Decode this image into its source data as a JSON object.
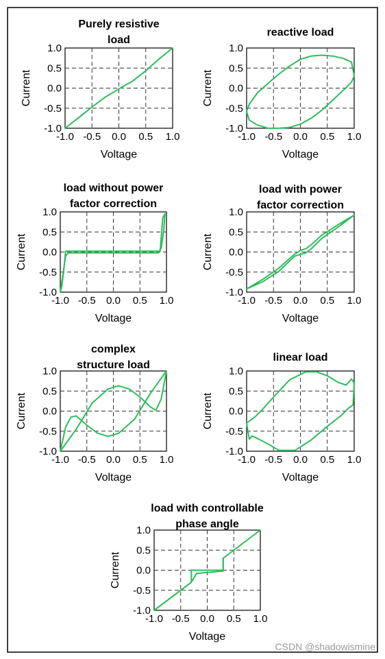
{
  "watermark": "CSDN @shadowismine",
  "styles": {
    "curve_color": "#2cbd5a"
  },
  "chart_data": [
    {
      "type": "line",
      "title": [
        "Purely resistive",
        "load"
      ],
      "xlabel": "Voltage",
      "ylabel": "Current",
      "xlim": [
        -1.0,
        1.0
      ],
      "ylim": [
        -1.0,
        1.0
      ],
      "xticks": [
        "-1.0",
        "-0.5",
        "0.0",
        "0.5",
        "1.0"
      ],
      "yticks": [
        "1.0",
        "0.5",
        "0.0",
        "-0.5",
        "-1.0"
      ],
      "grid": true,
      "series": [
        {
          "x": [
            -1.0,
            -0.75,
            -0.5,
            -0.25,
            -0.1,
            0.0,
            0.1,
            0.25,
            0.5,
            0.75,
            1.0
          ],
          "y": [
            -1.0,
            -0.74,
            -0.47,
            -0.22,
            -0.1,
            -0.02,
            0.06,
            0.17,
            0.43,
            0.73,
            1.0
          ]
        }
      ]
    },
    {
      "type": "line",
      "title": [
        "reactive load"
      ],
      "xlabel": "Voltage",
      "ylabel": "Current",
      "xlim": [
        -1.0,
        1.0
      ],
      "ylim": [
        -1.0,
        1.0
      ],
      "xticks": [
        "-1.0",
        "-0.5",
        "0.0",
        "0.5",
        "1.0"
      ],
      "yticks": [
        "1.0",
        "0.5",
        "0.0",
        "-0.5",
        "-1.0"
      ],
      "grid": true,
      "series": [
        {
          "x": [
            1.0,
            0.95,
            0.8,
            0.6,
            0.4,
            0.2,
            0.0,
            -0.2,
            -0.4,
            -0.6,
            -0.8,
            -0.95,
            -1.0,
            -0.95,
            -0.8,
            -0.6,
            -0.4,
            -0.2,
            0.0,
            0.2,
            0.4,
            0.6,
            0.8,
            0.95,
            1.0
          ],
          "y": [
            0.3,
            0.65,
            0.74,
            0.8,
            0.82,
            0.8,
            0.72,
            0.55,
            0.35,
            0.12,
            -0.12,
            -0.4,
            -0.58,
            -0.8,
            -0.92,
            -1.0,
            -1.0,
            -0.98,
            -0.9,
            -0.75,
            -0.55,
            -0.3,
            -0.05,
            0.15,
            0.3
          ]
        }
      ]
    },
    {
      "type": "line",
      "title": [
        "load without power",
        "factor correction"
      ],
      "xlabel": "Voltage",
      "ylabel": "Current",
      "xlim": [
        -1.0,
        1.0
      ],
      "ylim": [
        -1.0,
        1.0
      ],
      "xticks": [
        "-1.0",
        "-0.5",
        "0.0",
        "0.5",
        "1.0"
      ],
      "yticks": [
        "1.0",
        "0.5",
        "0.0",
        "-0.5",
        "-1.0"
      ],
      "grid": true,
      "series": [
        {
          "x": [
            -1.0,
            -0.95,
            -0.9,
            -0.85,
            -0.5,
            0.0,
            0.5,
            0.8,
            0.85,
            0.9,
            0.95,
            0.97,
            0.97,
            0.93,
            0.88,
            0.8,
            0.5,
            0.0,
            -0.5,
            -0.85,
            -0.9,
            -0.93,
            -0.97,
            -1.0
          ],
          "y": [
            -1.0,
            -0.55,
            -0.1,
            -0.02,
            -0.02,
            -0.02,
            -0.02,
            -0.02,
            -0.02,
            0.1,
            0.55,
            0.95,
            0.95,
            0.85,
            0.02,
            0.02,
            0.02,
            0.02,
            0.02,
            0.02,
            0.02,
            -0.4,
            -0.85,
            -1.0
          ]
        }
      ]
    },
    {
      "type": "line",
      "title": [
        "load with power",
        "factor correction"
      ],
      "xlabel": "Voltage",
      "ylabel": "Current",
      "xlim": [
        -1.0,
        1.0
      ],
      "ylim": [
        -1.0,
        1.0
      ],
      "xticks": [
        "-1.0",
        "-0.5",
        "0.0",
        "0.5",
        "1.0"
      ],
      "yticks": [
        "1.0",
        "0.5",
        "0.0",
        "-0.5",
        "-1.0"
      ],
      "grid": true,
      "series": [
        {
          "x": [
            -1.0,
            -0.7,
            -0.4,
            -0.2,
            -0.1,
            0.0,
            0.1,
            0.2,
            0.4,
            0.7,
            1.0,
            0.7,
            0.4,
            0.2,
            0.1,
            0.0,
            -0.1,
            -0.2,
            -0.4,
            -0.7,
            -1.0
          ],
          "y": [
            -0.92,
            -0.68,
            -0.4,
            -0.16,
            -0.05,
            0.04,
            0.08,
            0.18,
            0.42,
            0.68,
            0.92,
            0.62,
            0.34,
            0.08,
            -0.02,
            -0.06,
            -0.1,
            -0.22,
            -0.48,
            -0.74,
            -0.92
          ]
        }
      ]
    },
    {
      "type": "line",
      "title": [
        "complex",
        "structure load"
      ],
      "xlabel": "Voltage",
      "ylabel": "Current",
      "xlim": [
        -1.0,
        1.0
      ],
      "ylim": [
        -1.0,
        1.0
      ],
      "xticks": [
        "-1.0",
        "-0.5",
        "0.0",
        "0.5",
        "1.0"
      ],
      "yticks": [
        "1.0",
        "0.5",
        "0.0",
        "-0.5",
        "-1.0"
      ],
      "grid": true,
      "series": [
        {
          "x": [
            -1.0,
            -0.7,
            -0.4,
            -0.1,
            0.1,
            0.3,
            0.5,
            0.7,
            0.8,
            0.9,
            1.0
          ],
          "y": [
            -1.0,
            -0.45,
            0.2,
            0.55,
            0.63,
            0.55,
            0.35,
            0.1,
            0.02,
            0.3,
            1.0
          ]
        },
        {
          "x": [
            1.0,
            0.7,
            0.4,
            0.1,
            -0.1,
            -0.3,
            -0.5,
            -0.7,
            -0.8,
            -0.9,
            -1.0
          ],
          "y": [
            1.0,
            0.45,
            -0.2,
            -0.55,
            -0.63,
            -0.55,
            -0.35,
            -0.12,
            -0.15,
            -0.4,
            -1.0
          ]
        }
      ]
    },
    {
      "type": "line",
      "title": [
        "linear load"
      ],
      "xlabel": "Voltage",
      "ylabel": "Current",
      "xlim": [
        -1.0,
        1.0
      ],
      "ylim": [
        -1.0,
        1.0
      ],
      "xticks": [
        "-1.0",
        "-0.5",
        "0.0",
        "0.5",
        "1.0"
      ],
      "yticks": [
        "1.0",
        "0.5",
        "0.0",
        "-0.5",
        "-1.0"
      ],
      "grid": true,
      "series": [
        {
          "x": [
            -1.0,
            -0.95,
            -0.85,
            -0.7,
            -0.5,
            -0.2,
            0.1,
            0.3,
            0.5,
            0.7,
            0.85,
            0.95,
            1.0,
            0.98,
            0.9,
            0.75,
            0.5,
            0.2,
            -0.1,
            -0.4,
            -0.6,
            -0.8,
            -0.9,
            -0.95,
            -1.0
          ],
          "y": [
            -0.3,
            -0.25,
            -0.15,
            0.05,
            0.35,
            0.78,
            0.98,
            0.98,
            0.88,
            0.72,
            0.65,
            0.8,
            0.7,
            0.15,
            0.08,
            -0.12,
            -0.38,
            -0.72,
            -0.98,
            -0.98,
            -0.82,
            -0.68,
            -0.62,
            -0.7,
            -0.3
          ]
        }
      ]
    },
    {
      "type": "line",
      "title": [
        "load with controllable",
        "phase angle"
      ],
      "xlabel": "Voltage",
      "ylabel": "Current",
      "xlim": [
        -1.0,
        1.0
      ],
      "ylim": [
        -1.0,
        1.0
      ],
      "xticks": [
        "-1.0",
        "-0.5",
        "0.0",
        "0.5",
        "1.0"
      ],
      "yticks": [
        "1.0",
        "0.5",
        "0.0",
        "-0.5",
        "-1.0"
      ],
      "grid": true,
      "series": [
        {
          "x": [
            -1.0,
            -0.3,
            -0.3,
            0.3,
            0.3,
            1.0
          ],
          "y": [
            -1.0,
            -0.3,
            0.0,
            0.0,
            0.3,
            1.0
          ]
        },
        {
          "x": [
            -1.0,
            -0.35,
            -0.3,
            -0.2,
            0.3,
            0.3
          ],
          "y": [
            -1.0,
            -0.35,
            -0.3,
            -0.08,
            -0.02,
            0.3
          ]
        }
      ]
    }
  ]
}
